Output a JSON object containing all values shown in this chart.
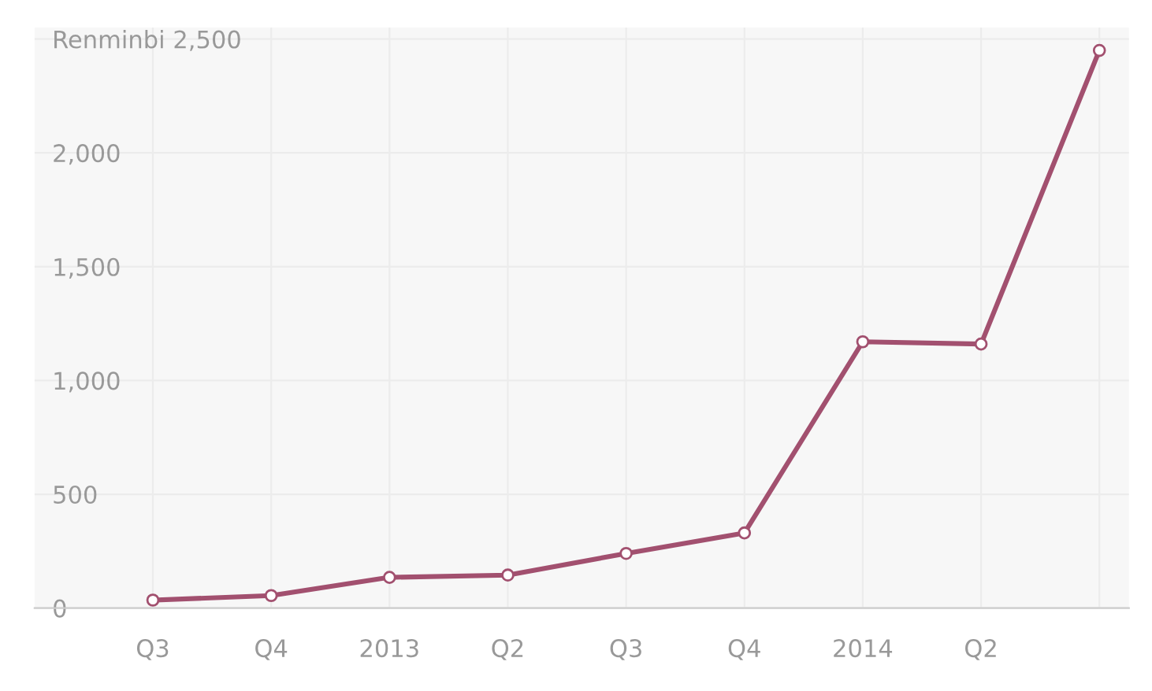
{
  "chart_data": {
    "type": "line",
    "categories": [
      "Q3",
      "Q4",
      "2013",
      "Q2",
      "Q3",
      "Q4",
      "2014",
      "Q2",
      null
    ],
    "series": [
      {
        "color": "#a2506f",
        "values": [
          35,
          55,
          135,
          145,
          240,
          330,
          1170,
          1160,
          2450
        ]
      }
    ],
    "ylim": [
      0,
      2550
    ],
    "yticks": [
      0,
      {
        "value": 500,
        "label": "500"
      },
      {
        "value": 1000,
        "label": "1,000"
      },
      {
        "value": 1500,
        "label": "1,500"
      },
      {
        "value": 2000,
        "label": "2,000"
      },
      {
        "value": 2500,
        "label": "Renminbi 2,500"
      }
    ],
    "grid": true,
    "marker": "circle",
    "line_style": "solid"
  }
}
